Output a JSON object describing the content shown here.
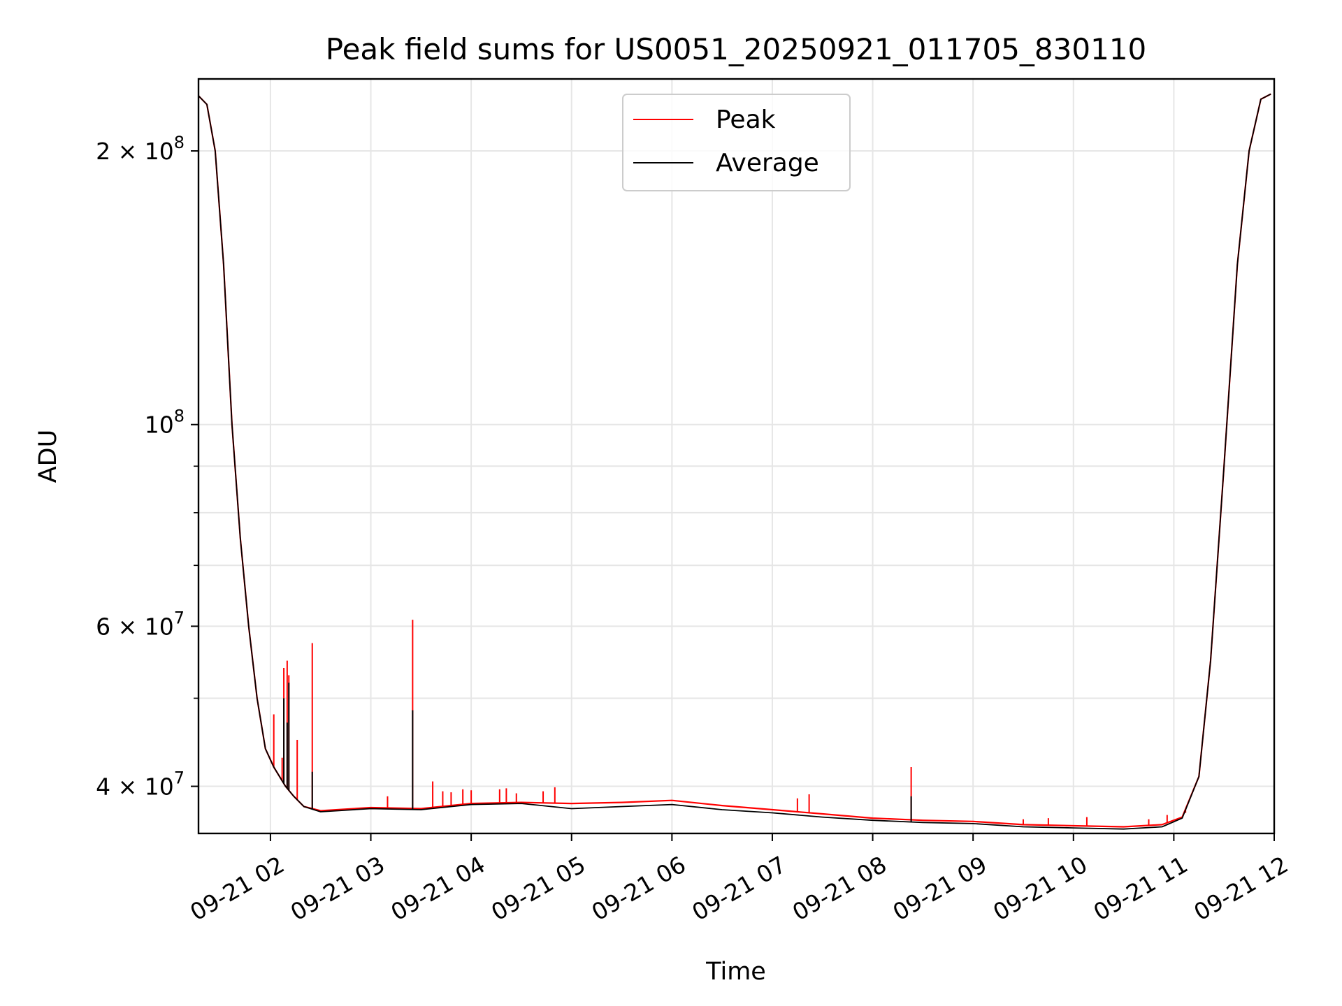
{
  "chart_data": {
    "type": "line",
    "title": "Peak field sums for US0051_20250921_011705_830110",
    "xlabel": "Time",
    "ylabel": "ADU",
    "y_scale": "log",
    "grid": true,
    "legend_position": "upper center",
    "xlim": [
      "2025-09-21 01:17",
      "2025-09-21 12:00"
    ],
    "ylim": [
      35500000,
      240000000
    ],
    "x_tick_labels": [
      "09-21 02",
      "09-21 03",
      "09-21 04",
      "09-21 05",
      "09-21 06",
      "09-21 07",
      "09-21 08",
      "09-21 09",
      "09-21 10",
      "09-21 11",
      "09-21 12"
    ],
    "x_ticks": [
      "2025-09-21 02:00",
      "2025-09-21 03:00",
      "2025-09-21 04:00",
      "2025-09-21 05:00",
      "2025-09-21 06:00",
      "2025-09-21 07:00",
      "2025-09-21 08:00",
      "2025-09-21 09:00",
      "2025-09-21 10:00",
      "2025-09-21 11:00",
      "2025-09-21 12:00"
    ],
    "y_major_ticks": [
      {
        "value": 40000000,
        "base": "4 × 10",
        "exp": "7"
      },
      {
        "value": 60000000,
        "base": "6 × 10",
        "exp": "7"
      },
      {
        "value": 100000000,
        "base": "10",
        "exp": "8"
      },
      {
        "value": 200000000,
        "base": "2 × 10",
        "exp": "8"
      }
    ],
    "y_minor_ticks": [
      50000000,
      70000000,
      80000000,
      90000000
    ],
    "series": [
      {
        "name": "Peak",
        "color": "#ff0000",
        "points": [
          [
            "2025-09-21 01:17",
            230000000
          ],
          [
            "2025-09-21 01:22",
            225000000
          ],
          [
            "2025-09-21 01:27",
            200000000
          ],
          [
            "2025-09-21 01:32",
            150000000
          ],
          [
            "2025-09-21 01:37",
            100000000
          ],
          [
            "2025-09-21 01:42",
            75000000
          ],
          [
            "2025-09-21 01:47",
            60000000
          ],
          [
            "2025-09-21 01:52",
            50000000
          ],
          [
            "2025-09-21 01:57",
            44000000
          ],
          [
            "2025-09-21 02:02",
            42000000
          ],
          [
            "2025-09-21 02:09",
            40000000
          ],
          [
            "2025-09-21 02:14",
            39000000
          ],
          [
            "2025-09-21 02:20",
            38000000
          ],
          [
            "2025-09-21 02:30",
            37600000
          ],
          [
            "2025-09-21 03:00",
            37900000
          ],
          [
            "2025-09-21 03:30",
            37800000
          ],
          [
            "2025-09-21 04:00",
            38300000
          ],
          [
            "2025-09-21 04:30",
            38400000
          ],
          [
            "2025-09-21 05:00",
            38300000
          ],
          [
            "2025-09-21 05:30",
            38400000
          ],
          [
            "2025-09-21 06:00",
            38600000
          ],
          [
            "2025-09-21 06:30",
            38100000
          ],
          [
            "2025-09-21 07:00",
            37700000
          ],
          [
            "2025-09-21 07:30",
            37300000
          ],
          [
            "2025-09-21 08:00",
            36900000
          ],
          [
            "2025-09-21 08:30",
            36700000
          ],
          [
            "2025-09-21 09:00",
            36600000
          ],
          [
            "2025-09-21 09:30",
            36300000
          ],
          [
            "2025-09-21 10:00",
            36200000
          ],
          [
            "2025-09-21 10:30",
            36100000
          ],
          [
            "2025-09-21 10:53",
            36300000
          ],
          [
            "2025-09-21 11:05",
            37000000
          ],
          [
            "2025-09-21 11:15",
            41000000
          ],
          [
            "2025-09-21 11:22",
            55000000
          ],
          [
            "2025-09-21 11:30",
            90000000
          ],
          [
            "2025-09-21 11:38",
            150000000
          ],
          [
            "2025-09-21 11:45",
            200000000
          ],
          [
            "2025-09-21 11:52",
            228000000
          ],
          [
            "2025-09-21 11:58",
            231000000
          ]
        ],
        "spikes": [
          [
            "2025-09-21 02:02",
            48000000
          ],
          [
            "2025-09-21 02:07",
            43000000
          ],
          [
            "2025-09-21 02:08",
            54000000
          ],
          [
            "2025-09-21 02:10",
            55000000
          ],
          [
            "2025-09-21 02:11",
            53000000
          ],
          [
            "2025-09-21 02:16",
            45000000
          ],
          [
            "2025-09-21 02:25",
            57500000
          ],
          [
            "2025-09-21 03:10",
            39000000
          ],
          [
            "2025-09-21 03:25",
            61000000
          ],
          [
            "2025-09-21 03:37",
            40500000
          ],
          [
            "2025-09-21 03:43",
            39500000
          ],
          [
            "2025-09-21 03:48",
            39400000
          ],
          [
            "2025-09-21 03:55",
            39700000
          ],
          [
            "2025-09-21 04:00",
            39600000
          ],
          [
            "2025-09-21 04:17",
            39700000
          ],
          [
            "2025-09-21 04:21",
            39800000
          ],
          [
            "2025-09-21 04:27",
            39300000
          ],
          [
            "2025-09-21 04:43",
            39500000
          ],
          [
            "2025-09-21 04:50",
            39900000
          ],
          [
            "2025-09-21 07:15",
            38800000
          ],
          [
            "2025-09-21 07:22",
            39200000
          ],
          [
            "2025-09-21 08:23",
            42000000
          ],
          [
            "2025-09-21 09:30",
            36800000
          ],
          [
            "2025-09-21 09:45",
            36900000
          ],
          [
            "2025-09-21 10:08",
            37000000
          ],
          [
            "2025-09-21 10:45",
            36800000
          ],
          [
            "2025-09-21 10:56",
            37200000
          ],
          [
            "2025-09-21 11:07",
            37400000
          ]
        ]
      },
      {
        "name": "Average",
        "color": "#000000",
        "points": [
          [
            "2025-09-21 01:17",
            230000000
          ],
          [
            "2025-09-21 01:22",
            225000000
          ],
          [
            "2025-09-21 01:27",
            200000000
          ],
          [
            "2025-09-21 01:32",
            150000000
          ],
          [
            "2025-09-21 01:37",
            100000000
          ],
          [
            "2025-09-21 01:42",
            75000000
          ],
          [
            "2025-09-21 01:47",
            60000000
          ],
          [
            "2025-09-21 01:52",
            50000000
          ],
          [
            "2025-09-21 01:57",
            44000000
          ],
          [
            "2025-09-21 02:02",
            42000000
          ],
          [
            "2025-09-21 02:09",
            40000000
          ],
          [
            "2025-09-21 02:14",
            39000000
          ],
          [
            "2025-09-21 02:20",
            38000000
          ],
          [
            "2025-09-21 02:30",
            37500000
          ],
          [
            "2025-09-21 03:00",
            37800000
          ],
          [
            "2025-09-21 03:30",
            37700000
          ],
          [
            "2025-09-21 04:00",
            38200000
          ],
          [
            "2025-09-21 04:30",
            38300000
          ],
          [
            "2025-09-21 05:00",
            37800000
          ],
          [
            "2025-09-21 05:30",
            38000000
          ],
          [
            "2025-09-21 06:00",
            38200000
          ],
          [
            "2025-09-21 06:30",
            37700000
          ],
          [
            "2025-09-21 07:00",
            37400000
          ],
          [
            "2025-09-21 07:30",
            37000000
          ],
          [
            "2025-09-21 08:00",
            36700000
          ],
          [
            "2025-09-21 08:30",
            36500000
          ],
          [
            "2025-09-21 09:00",
            36400000
          ],
          [
            "2025-09-21 09:30",
            36100000
          ],
          [
            "2025-09-21 10:00",
            36000000
          ],
          [
            "2025-09-21 10:30",
            35900000
          ],
          [
            "2025-09-21 10:53",
            36100000
          ],
          [
            "2025-09-21 11:05",
            36900000
          ],
          [
            "2025-09-21 11:15",
            41000000
          ],
          [
            "2025-09-21 11:22",
            55000000
          ],
          [
            "2025-09-21 11:30",
            90000000
          ],
          [
            "2025-09-21 11:38",
            150000000
          ],
          [
            "2025-09-21 11:45",
            200000000
          ],
          [
            "2025-09-21 11:52",
            228000000
          ],
          [
            "2025-09-21 11:58",
            231000000
          ]
        ],
        "spikes": [
          [
            "2025-09-21 02:08",
            50000000
          ],
          [
            "2025-09-21 02:10",
            47000000
          ],
          [
            "2025-09-21 02:11",
            52000000
          ],
          [
            "2025-09-21 02:25",
            41500000
          ],
          [
            "2025-09-21 03:25",
            48500000
          ],
          [
            "2025-09-21 08:23",
            39000000
          ]
        ]
      }
    ]
  }
}
